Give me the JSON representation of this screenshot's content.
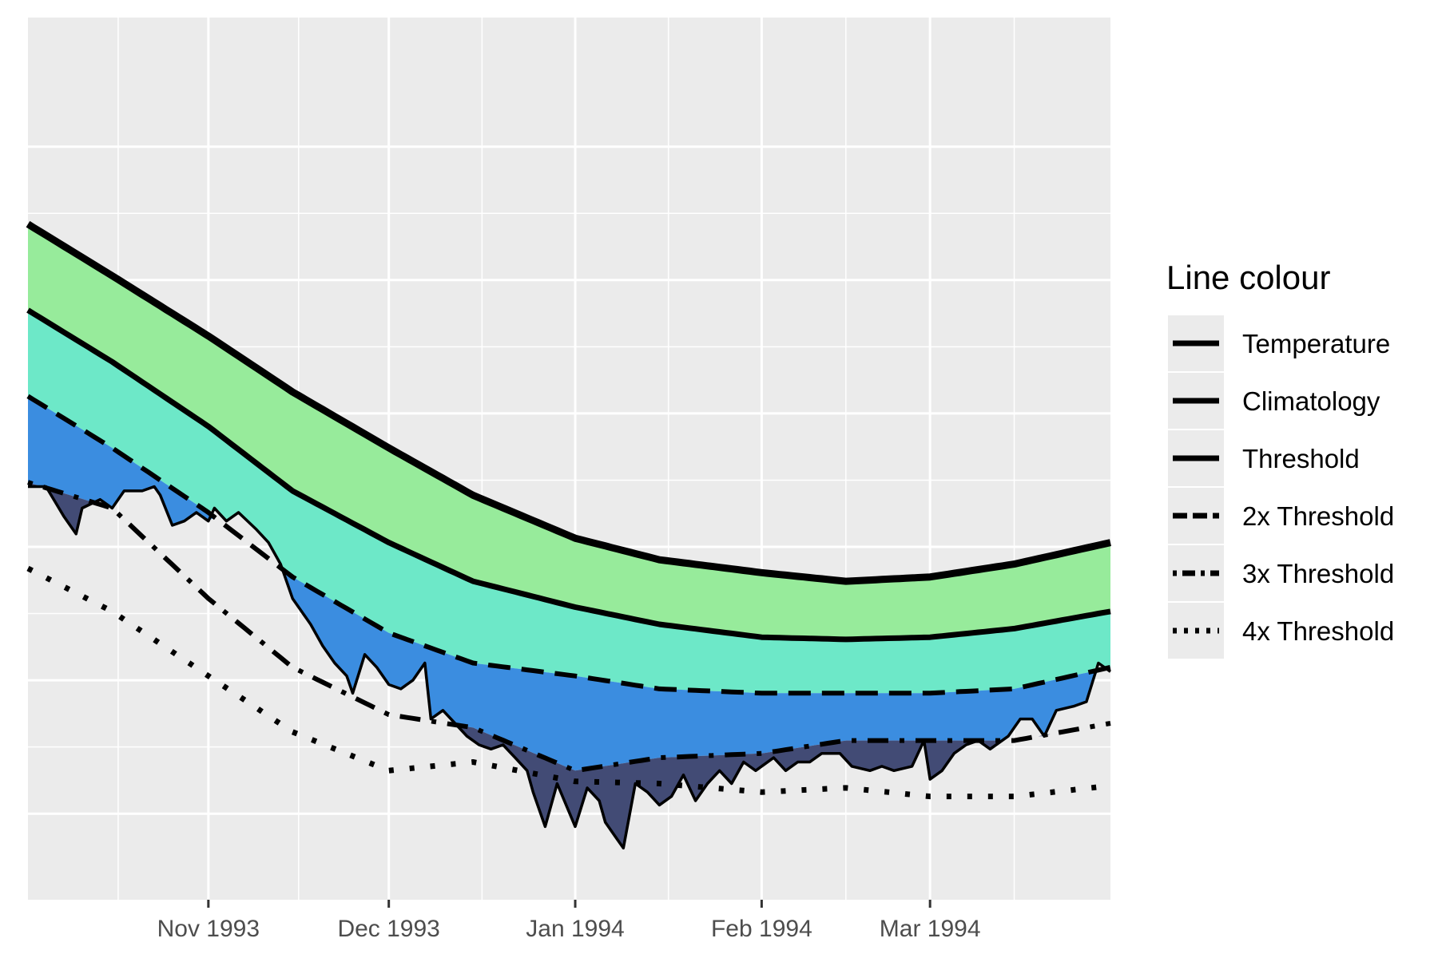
{
  "chart_data": {
    "type": "area",
    "title": "",
    "xlabel": "",
    "ylabel": "",
    "x_range": [
      "1993-10-02",
      "1994-03-31"
    ],
    "y_range": [
      -0.5,
      20
    ],
    "x_ticks": [
      {
        "date": "1993-11-01",
        "label": "Nov 1993"
      },
      {
        "date": "1993-12-01",
        "label": "Dec 1993"
      },
      {
        "date": "1994-01-01",
        "label": "Jan 1994"
      },
      {
        "date": "1994-02-01",
        "label": "Feb 1994"
      },
      {
        "date": "1994-03-01",
        "label": "Mar 1994"
      }
    ],
    "y_grid": [
      1.5,
      4.6,
      7.7,
      10.8,
      13.9,
      17.0
    ],
    "y_tick_labels_visible": false,
    "grid": true,
    "panel_background": "#ebebeb",
    "category_colors": {
      "moderate": "#97eb9b",
      "strong": "#6de8c8",
      "severe": "#3b8de0",
      "extreme": "#424b75"
    },
    "legend": {
      "title": "Line colour",
      "position": "right",
      "items": [
        {
          "label": "Temperature",
          "linetype": "solid"
        },
        {
          "label": "Climatology",
          "linetype": "solid"
        },
        {
          "label": "Threshold",
          "linetype": "solid"
        },
        {
          "label": "2x Threshold",
          "linetype": "dashed"
        },
        {
          "label": "3x Threshold",
          "linetype": "dotdash"
        },
        {
          "label": "4x Threshold",
          "linetype": "dotted"
        }
      ]
    },
    "series": [
      {
        "name": "Climatology",
        "linetype": "solid",
        "points": [
          [
            "1993-10-02",
            15.2
          ],
          [
            "1993-10-16",
            14.0
          ],
          [
            "1993-11-01",
            12.6
          ],
          [
            "1993-11-15",
            11.3
          ],
          [
            "1993-12-01",
            10.0
          ],
          [
            "1993-12-15",
            8.9
          ],
          [
            "1994-01-01",
            7.9
          ],
          [
            "1994-01-15",
            7.4
          ],
          [
            "1994-02-01",
            7.1
          ],
          [
            "1994-02-15",
            6.9
          ],
          [
            "1994-03-01",
            7.0
          ],
          [
            "1994-03-15",
            7.3
          ],
          [
            "1994-03-31",
            7.8
          ]
        ]
      },
      {
        "name": "Threshold",
        "linetype": "solid",
        "points": [
          [
            "1993-10-02",
            13.2
          ],
          [
            "1993-10-16",
            12.0
          ],
          [
            "1993-11-01",
            10.5
          ],
          [
            "1993-11-15",
            9.0
          ],
          [
            "1993-12-01",
            7.8
          ],
          [
            "1993-12-15",
            6.9
          ],
          [
            "1994-01-01",
            6.3
          ],
          [
            "1994-01-15",
            5.9
          ],
          [
            "1994-02-01",
            5.6
          ],
          [
            "1994-02-15",
            5.55
          ],
          [
            "1994-03-01",
            5.6
          ],
          [
            "1994-03-15",
            5.8
          ],
          [
            "1994-03-31",
            6.2
          ]
        ]
      },
      {
        "name": "2x Threshold",
        "linetype": "dashed",
        "points": [
          [
            "1993-10-02",
            11.2
          ],
          [
            "1993-10-16",
            10.0
          ],
          [
            "1993-11-01",
            8.5
          ],
          [
            "1993-11-15",
            7.0
          ],
          [
            "1993-12-01",
            5.7
          ],
          [
            "1993-12-15",
            5.0
          ],
          [
            "1994-01-01",
            4.7
          ],
          [
            "1994-01-15",
            4.4
          ],
          [
            "1994-02-01",
            4.3
          ],
          [
            "1994-02-15",
            4.3
          ],
          [
            "1994-03-01",
            4.3
          ],
          [
            "1994-03-15",
            4.4
          ],
          [
            "1994-03-31",
            4.9
          ]
        ]
      },
      {
        "name": "3x Threshold",
        "linetype": "dotdash",
        "points": [
          [
            "1993-10-02",
            9.2
          ],
          [
            "1993-10-16",
            8.6
          ],
          [
            "1993-11-01",
            6.5
          ],
          [
            "1993-11-15",
            4.9
          ],
          [
            "1993-12-01",
            3.8
          ],
          [
            "1993-12-15",
            3.5
          ],
          [
            "1994-01-01",
            2.5
          ],
          [
            "1994-01-15",
            2.8
          ],
          [
            "1994-02-01",
            2.9
          ],
          [
            "1994-02-15",
            3.2
          ],
          [
            "1994-03-01",
            3.2
          ],
          [
            "1994-03-15",
            3.2
          ],
          [
            "1994-03-31",
            3.6
          ]
        ]
      },
      {
        "name": "4x Threshold",
        "linetype": "dotted",
        "points": [
          [
            "1993-10-02",
            7.2
          ],
          [
            "1993-10-16",
            6.2
          ],
          [
            "1993-11-01",
            4.7
          ],
          [
            "1993-11-15",
            3.4
          ],
          [
            "1993-12-01",
            2.5
          ],
          [
            "1993-12-15",
            2.7
          ],
          [
            "1994-01-01",
            2.25
          ],
          [
            "1994-01-15",
            2.2
          ],
          [
            "1994-02-01",
            2.0
          ],
          [
            "1994-02-15",
            2.1
          ],
          [
            "1994-03-01",
            1.9
          ],
          [
            "1994-03-15",
            1.9
          ],
          [
            "1994-03-31",
            2.15
          ]
        ]
      },
      {
        "name": "Temperature",
        "linetype": "solid",
        "points": [
          [
            "1993-10-02",
            9.1
          ],
          [
            "1993-10-05",
            9.1
          ],
          [
            "1993-10-08",
            8.4
          ],
          [
            "1993-10-10",
            8.0
          ],
          [
            "1993-10-11",
            8.6
          ],
          [
            "1993-10-14",
            8.8
          ],
          [
            "1993-10-16",
            8.6
          ],
          [
            "1993-10-18",
            9.0
          ],
          [
            "1993-10-21",
            9.0
          ],
          [
            "1993-10-23",
            9.1
          ],
          [
            "1993-10-24",
            8.9
          ],
          [
            "1993-10-26",
            8.2
          ],
          [
            "1993-10-28",
            8.3
          ],
          [
            "1993-10-30",
            8.5
          ],
          [
            "1993-11-01",
            8.3
          ],
          [
            "1993-11-02",
            8.6
          ],
          [
            "1993-11-04",
            8.3
          ],
          [
            "1993-11-06",
            8.5
          ],
          [
            "1993-11-09",
            8.1
          ],
          [
            "1993-11-11",
            7.8
          ],
          [
            "1993-11-13",
            7.3
          ],
          [
            "1993-11-15",
            6.5
          ],
          [
            "1993-11-18",
            5.9
          ],
          [
            "1993-11-20",
            5.4
          ],
          [
            "1993-11-22",
            5.0
          ],
          [
            "1993-11-24",
            4.7
          ],
          [
            "1993-11-25",
            4.3
          ],
          [
            "1993-11-27",
            5.2
          ],
          [
            "1993-11-29",
            4.9
          ],
          [
            "1993-12-01",
            4.5
          ],
          [
            "1993-12-03",
            4.4
          ],
          [
            "1993-12-05",
            4.6
          ],
          [
            "1993-12-07",
            5.0
          ],
          [
            "1993-12-08",
            3.7
          ],
          [
            "1993-12-10",
            3.9
          ],
          [
            "1993-12-12",
            3.6
          ],
          [
            "1993-12-14",
            3.3
          ],
          [
            "1993-12-16",
            3.1
          ],
          [
            "1993-12-18",
            3.0
          ],
          [
            "1993-12-20",
            3.1
          ],
          [
            "1993-12-22",
            2.8
          ],
          [
            "1993-12-24",
            2.5
          ],
          [
            "1993-12-25",
            2.0
          ],
          [
            "1993-12-27",
            1.2
          ],
          [
            "1993-12-29",
            2.2
          ],
          [
            "1994-01-01",
            1.2
          ],
          [
            "1994-01-03",
            2.1
          ],
          [
            "1994-01-05",
            1.8
          ],
          [
            "1994-01-06",
            1.3
          ],
          [
            "1994-01-08",
            0.9
          ],
          [
            "1994-01-09",
            0.7
          ],
          [
            "1994-01-11",
            2.2
          ],
          [
            "1994-01-13",
            2.0
          ],
          [
            "1994-01-15",
            1.7
          ],
          [
            "1994-01-17",
            1.9
          ],
          [
            "1994-01-19",
            2.4
          ],
          [
            "1994-01-21",
            1.8
          ],
          [
            "1994-01-23",
            2.2
          ],
          [
            "1994-01-25",
            2.5
          ],
          [
            "1994-01-27",
            2.2
          ],
          [
            "1994-01-29",
            2.7
          ],
          [
            "1994-01-31",
            2.5
          ],
          [
            "1994-02-03",
            2.8
          ],
          [
            "1994-02-05",
            2.5
          ],
          [
            "1994-02-07",
            2.7
          ],
          [
            "1994-02-09",
            2.7
          ],
          [
            "1994-02-11",
            2.9
          ],
          [
            "1994-02-14",
            2.9
          ],
          [
            "1994-02-16",
            2.6
          ],
          [
            "1994-02-19",
            2.5
          ],
          [
            "1994-02-21",
            2.6
          ],
          [
            "1994-02-23",
            2.5
          ],
          [
            "1994-02-26",
            2.6
          ],
          [
            "1994-02-28",
            3.2
          ],
          [
            "1994-03-01",
            2.3
          ],
          [
            "1994-03-03",
            2.5
          ],
          [
            "1994-03-05",
            2.9
          ],
          [
            "1994-03-07",
            3.1
          ],
          [
            "1994-03-09",
            3.2
          ],
          [
            "1994-03-11",
            3.0
          ],
          [
            "1994-03-14",
            3.3
          ],
          [
            "1994-03-16",
            3.7
          ],
          [
            "1994-03-18",
            3.7
          ],
          [
            "1994-03-20",
            3.3
          ],
          [
            "1994-03-22",
            3.9
          ],
          [
            "1994-03-25",
            4.0
          ],
          [
            "1994-03-27",
            4.1
          ],
          [
            "1994-03-29",
            5.0
          ],
          [
            "1994-03-31",
            4.8
          ]
        ]
      }
    ]
  }
}
